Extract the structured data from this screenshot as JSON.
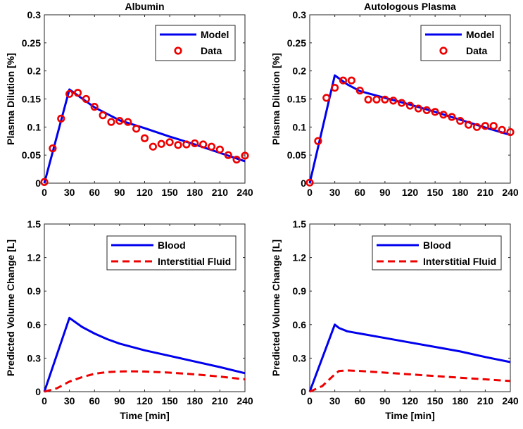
{
  "chart_data": [
    {
      "type": "line",
      "title": "Albumin",
      "xlabel": "",
      "ylabel": "Plasma Dilution [%]",
      "xlim": [
        0,
        240
      ],
      "ylim": [
        0,
        0.3
      ],
      "xticks": [
        0,
        30,
        60,
        90,
        120,
        150,
        180,
        210,
        240
      ],
      "yticks": [
        0,
        0.05,
        0.1,
        0.15,
        0.2,
        0.25,
        0.3
      ],
      "ytick_labels": [
        "0",
        "0.05",
        "0.1",
        "0.15",
        "0.2",
        "0.25",
        "0.3"
      ],
      "legend_position": "top-right",
      "series": [
        {
          "name": "Model",
          "style": "line",
          "color": "#0000ee",
          "x": [
            0,
            30,
            60,
            90,
            120,
            150,
            180,
            210,
            240
          ],
          "y": [
            0,
            0.167,
            0.135,
            0.112,
            0.098,
            0.083,
            0.069,
            0.054,
            0.039
          ]
        },
        {
          "name": "Data",
          "style": "marker",
          "color": "#ee0000",
          "x": [
            0,
            10,
            20,
            30,
            40,
            50,
            60,
            70,
            80,
            90,
            100,
            110,
            120,
            130,
            140,
            150,
            160,
            170,
            180,
            190,
            200,
            210,
            220,
            230,
            240
          ],
          "y": [
            0.002,
            0.062,
            0.115,
            0.159,
            0.161,
            0.15,
            0.136,
            0.121,
            0.109,
            0.111,
            0.109,
            0.097,
            0.08,
            0.065,
            0.07,
            0.073,
            0.068,
            0.069,
            0.071,
            0.069,
            0.065,
            0.06,
            0.05,
            0.042,
            0.049
          ]
        }
      ]
    },
    {
      "type": "line",
      "title": "Autologous Plasma",
      "xlabel": "",
      "ylabel": "Plasma Dilution [%]",
      "xlim": [
        0,
        240
      ],
      "ylim": [
        0,
        0.3
      ],
      "xticks": [
        0,
        30,
        60,
        90,
        120,
        150,
        180,
        210,
        240
      ],
      "yticks": [
        0,
        0.05,
        0.1,
        0.15,
        0.2,
        0.25,
        0.3
      ],
      "ytick_labels": [
        "0",
        "0.05",
        "0.1",
        "0.15",
        "0.2",
        "0.25",
        "0.3"
      ],
      "legend_position": "top-right",
      "series": [
        {
          "name": "Model",
          "style": "line",
          "color": "#0000ee",
          "x": [
            0,
            30,
            45,
            60,
            90,
            120,
            150,
            180,
            210,
            240
          ],
          "y": [
            0,
            0.192,
            0.176,
            0.164,
            0.152,
            0.14,
            0.127,
            0.113,
            0.099,
            0.086
          ]
        },
        {
          "name": "Data",
          "style": "marker",
          "color": "#ee0000",
          "x": [
            0,
            10,
            20,
            30,
            40,
            50,
            60,
            70,
            80,
            90,
            100,
            110,
            120,
            130,
            140,
            150,
            160,
            170,
            180,
            190,
            200,
            210,
            220,
            230,
            240
          ],
          "y": [
            0.001,
            0.075,
            0.152,
            0.17,
            0.183,
            0.183,
            0.165,
            0.149,
            0.149,
            0.149,
            0.147,
            0.143,
            0.138,
            0.133,
            0.13,
            0.127,
            0.122,
            0.118,
            0.111,
            0.104,
            0.1,
            0.102,
            0.102,
            0.095,
            0.091
          ]
        }
      ]
    },
    {
      "type": "line",
      "title": "",
      "xlabel": "Time [min]",
      "ylabel": "Predicted Volume Change [L]",
      "xlim": [
        0,
        240
      ],
      "ylim": [
        0,
        1.5
      ],
      "xticks": [
        0,
        30,
        60,
        90,
        120,
        150,
        180,
        210,
        240
      ],
      "yticks": [
        0,
        0.3,
        0.6,
        0.9,
        1.2,
        1.5
      ],
      "ytick_labels": [
        "0",
        "0.3",
        "0.6",
        "0.9",
        "1.2",
        "1.5"
      ],
      "legend_position": "top-right",
      "series": [
        {
          "name": "Blood",
          "style": "line",
          "color": "#0000ee",
          "x": [
            0,
            30,
            45,
            60,
            75,
            90,
            120,
            150,
            180,
            210,
            240
          ],
          "y": [
            0,
            0.66,
            0.58,
            0.52,
            0.47,
            0.43,
            0.37,
            0.32,
            0.27,
            0.22,
            0.165
          ]
        },
        {
          "name": "Interstitial Fluid",
          "style": "dashed",
          "color": "#ee0000",
          "x": [
            0,
            15,
            30,
            45,
            60,
            75,
            90,
            100,
            120,
            150,
            180,
            210,
            240
          ],
          "y": [
            0,
            0.03,
            0.09,
            0.13,
            0.16,
            0.175,
            0.18,
            0.182,
            0.18,
            0.17,
            0.155,
            0.135,
            0.11
          ]
        }
      ]
    },
    {
      "type": "line",
      "title": "",
      "xlabel": "Time [min]",
      "ylabel": "Predicted Volume Change [L]",
      "xlim": [
        0,
        240
      ],
      "ylim": [
        0,
        1.5
      ],
      "xticks": [
        0,
        30,
        60,
        90,
        120,
        150,
        180,
        210,
        240
      ],
      "yticks": [
        0,
        0.3,
        0.6,
        0.9,
        1.2,
        1.5
      ],
      "ytick_labels": [
        "0",
        "0.3",
        "0.6",
        "0.9",
        "1.2",
        "1.5"
      ],
      "legend_position": "top-right",
      "series": [
        {
          "name": "Blood",
          "style": "line",
          "color": "#0000ee",
          "x": [
            0,
            30,
            35,
            45,
            60,
            90,
            120,
            150,
            180,
            210,
            240
          ],
          "y": [
            0,
            0.6,
            0.57,
            0.54,
            0.52,
            0.48,
            0.44,
            0.4,
            0.36,
            0.31,
            0.265
          ]
        },
        {
          "name": "Interstitial Fluid",
          "style": "dashed",
          "color": "#ee0000",
          "x": [
            0,
            15,
            30,
            35,
            45,
            60,
            90,
            120,
            150,
            180,
            210,
            240
          ],
          "y": [
            0,
            0.05,
            0.155,
            0.185,
            0.19,
            0.185,
            0.17,
            0.155,
            0.14,
            0.125,
            0.11,
            0.095
          ]
        }
      ]
    }
  ]
}
